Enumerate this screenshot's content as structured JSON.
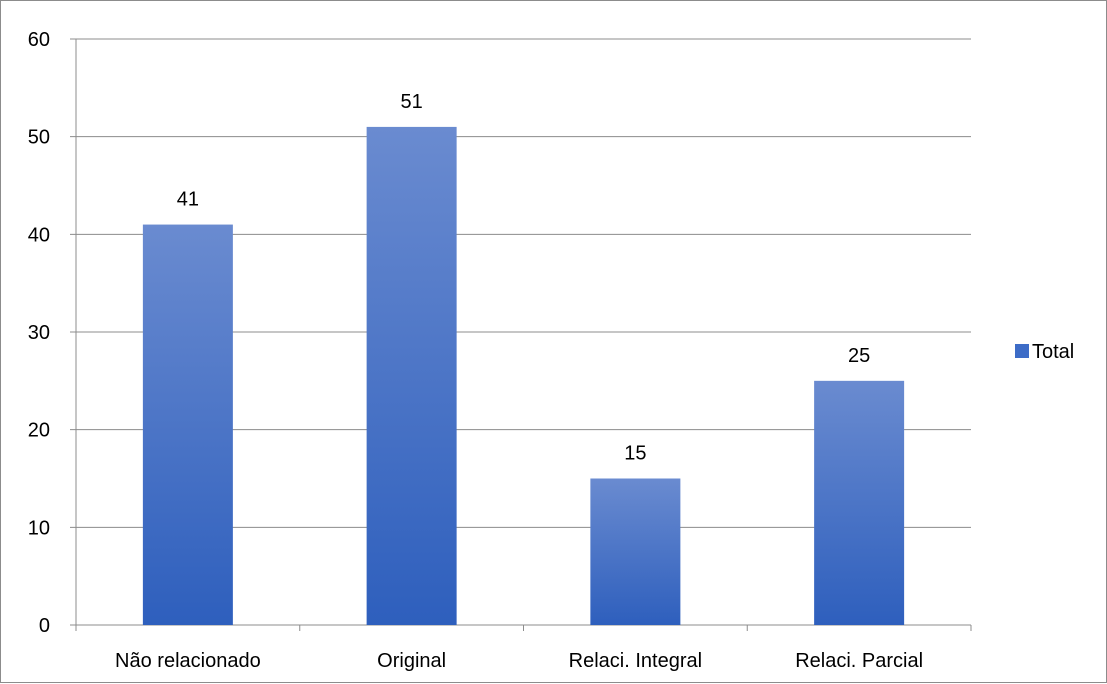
{
  "chart_data": {
    "type": "bar",
    "categories": [
      "Não relacionado",
      "Original",
      "Relaci. Integral",
      "Relaci. Parcial"
    ],
    "series": [
      {
        "name": "Total",
        "values": [
          41,
          51,
          15,
          25
        ]
      }
    ],
    "ylim": [
      0,
      60
    ],
    "yticks": [
      0,
      10,
      20,
      30,
      40,
      50,
      60
    ],
    "grid": true,
    "legend": "right",
    "data_labels": true,
    "colors": {
      "bar_top": "#6a8bd0",
      "bar_bottom": "#2e5fbd",
      "grid": "#8c8c8c",
      "legend_swatch": "#3d6cc7"
    }
  }
}
